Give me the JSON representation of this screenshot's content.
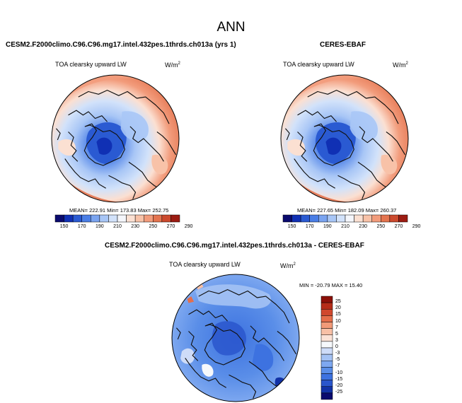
{
  "page": {
    "title": "ANN"
  },
  "panels": {
    "model": {
      "title": "CESM2.F2000climo.C96.C96.mg17.intel.432pes.1thrds.ch013a (yrs 1)",
      "variable": "TOA clearsky upward LW",
      "units_base": "W/m",
      "units_exp": "2",
      "stats": "MEAN= 222.91   Min= 173.83   Max= 252.75"
    },
    "obs": {
      "title": "CERES-EBAF",
      "variable": "TOA clearsky upward LW",
      "units_base": "W/m",
      "units_exp": "2",
      "stats": "MEAN= 227.65   Min= 182.09   Max= 260.37"
    },
    "diff": {
      "title": "CESM2.F2000climo.C96.C96.mg17.intel.432pes.1thrds.ch013a - CERES-EBAF",
      "variable": "TOA clearsky upward LW",
      "units_base": "W/m",
      "units_exp": "2",
      "stats": "MIN = -20.79  MAX =  15.40"
    }
  },
  "colors": {
    "abs_scale": [
      "#0a0a6e",
      "#1030b4",
      "#2a5ad2",
      "#4a7ee6",
      "#7aa4f0",
      "#a8c6f6",
      "#d2e2fa",
      "#f4f6fb",
      "#fbe0d2",
      "#f8c2a8",
      "#f29c7c",
      "#e4744f",
      "#cc4a2e",
      "#9c1c12"
    ],
    "diff_scale": [
      "#0a0a6e",
      "#1232a6",
      "#2a56cc",
      "#3d72e0",
      "#5a8ee8",
      "#7ea8f0",
      "#a4c2f4",
      "#cedcf8",
      "#f6f8fb",
      "#fbe2d6",
      "#f8c0a6",
      "#f29a78",
      "#e56e4b",
      "#d0482e",
      "#b52c18",
      "#8c1008"
    ]
  },
  "chart_data": [
    {
      "type": "heatmap",
      "projection": "north-polar-stereographic",
      "title": "CESM2.F2000climo.C96.C96.mg17.intel.432pes.1thrds.ch013a (yrs 1)",
      "variable": "TOA clearsky upward LW",
      "units": "W/m2",
      "mean": 222.91,
      "min": 173.83,
      "max": 252.75,
      "colorbar_levels": [
        150,
        170,
        190,
        210,
        230,
        250,
        270,
        290
      ]
    },
    {
      "type": "heatmap",
      "projection": "north-polar-stereographic",
      "title": "CERES-EBAF",
      "variable": "TOA clearsky upward LW",
      "units": "W/m2",
      "mean": 227.65,
      "min": 182.09,
      "max": 260.37,
      "colorbar_levels": [
        150,
        170,
        190,
        210,
        230,
        250,
        270,
        290
      ]
    },
    {
      "type": "heatmap",
      "projection": "north-polar-stereographic",
      "title": "CESM2.F2000climo.C96.C96.mg17.intel.432pes.1thrds.ch013a - CERES-EBAF",
      "variable": "TOA clearsky upward LW",
      "units": "W/m2",
      "min": -20.79,
      "max": 15.4,
      "colorbar_levels": [
        25,
        20,
        15,
        10,
        7,
        5,
        3,
        0,
        -3,
        -5,
        -7,
        -10,
        -15,
        -20,
        -25
      ]
    }
  ]
}
